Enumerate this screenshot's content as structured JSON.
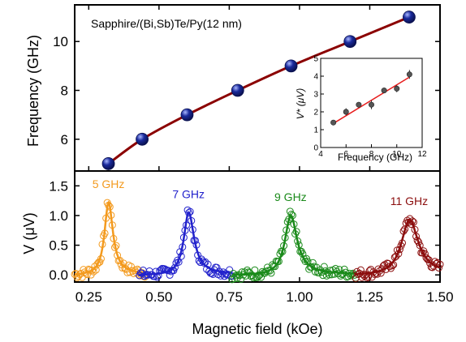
{
  "chart_data": [
    {
      "type": "scatter",
      "panel": "top",
      "annotation": "Sapphire/(Bi,Sb)Te/Py(12 nm)",
      "xlabel": "Magnetic field (kOe)",
      "ylabel": "Frequency (GHz)",
      "xlim": [
        0.2,
        1.5
      ],
      "ylim": [
        4.7,
        11.5
      ],
      "y_ticks": [
        "6",
        "8",
        "10"
      ],
      "series": [
        {
          "kind": "points",
          "color": "#1a2a9c",
          "x": [
            0.32,
            0.44,
            0.6,
            0.78,
            0.97,
            1.18,
            1.39
          ],
          "y": [
            5,
            6,
            7,
            8,
            9,
            10,
            11
          ]
        },
        {
          "kind": "fit",
          "color": "#8b0000",
          "x": [
            0.32,
            0.44,
            0.6,
            0.78,
            0.97,
            1.18,
            1.39
          ],
          "y": [
            5,
            6,
            7,
            8,
            9,
            10,
            11
          ]
        }
      ]
    },
    {
      "type": "scatter",
      "panel": "inset",
      "xlabel": "Frequency (GHz)",
      "ylabel": "V* (μV)",
      "xlim": [
        4,
        12
      ],
      "ylim": [
        0,
        5
      ],
      "x_ticks": [
        "4",
        "6",
        "8",
        "10",
        "12"
      ],
      "y_ticks": [
        "0",
        "1",
        "2",
        "3",
        "4",
        "5"
      ],
      "series": [
        {
          "kind": "points",
          "color": "#555555",
          "x": [
            5,
            6,
            7,
            8,
            9,
            10,
            11
          ],
          "y": [
            1.4,
            2.0,
            2.4,
            2.4,
            3.2,
            3.3,
            4.1
          ],
          "err": [
            0.1,
            0.2,
            0.15,
            0.25,
            0.15,
            0.2,
            0.25
          ]
        },
        {
          "kind": "fit",
          "color": "#e81c1c",
          "x": [
            5,
            11
          ],
          "y": [
            1.35,
            3.95
          ]
        }
      ]
    },
    {
      "type": "line",
      "panel": "bottom",
      "xlabel": "Magnetic field (kOe)",
      "ylabel": "V (μV)",
      "xlim": [
        0.2,
        1.5
      ],
      "ylim": [
        -0.12,
        1.75
      ],
      "x_ticks": [
        "0.25",
        "0.50",
        "0.75",
        "1.00",
        "1.25",
        "1.50"
      ],
      "y_ticks": [
        "0.0",
        "0.5",
        "1.0",
        "1.5"
      ],
      "series": [
        {
          "name": "5 GHz",
          "color": "#f39a1e",
          "x_range": [
            0.2,
            0.45
          ],
          "center": 0.32,
          "width": 0.018,
          "amplitude": 1.22,
          "asym": 0.1
        },
        {
          "name": "7 GHz",
          "color": "#2222cc",
          "x_range": [
            0.43,
            0.76
          ],
          "center": 0.605,
          "width": 0.022,
          "amplitude": 1.05,
          "asym": 0.1
        },
        {
          "name": "9 GHz",
          "color": "#1a8a1a",
          "x_range": [
            0.76,
            1.2
          ],
          "center": 0.968,
          "width": 0.026,
          "amplitude": 1.0,
          "asym": 0.1
        },
        {
          "name": "11 GHz",
          "color": "#8b0d0d",
          "x_range": [
            1.2,
            1.5
          ],
          "center": 1.39,
          "width": 0.036,
          "amplitude": 0.93,
          "asym": 0.1
        }
      ]
    }
  ]
}
